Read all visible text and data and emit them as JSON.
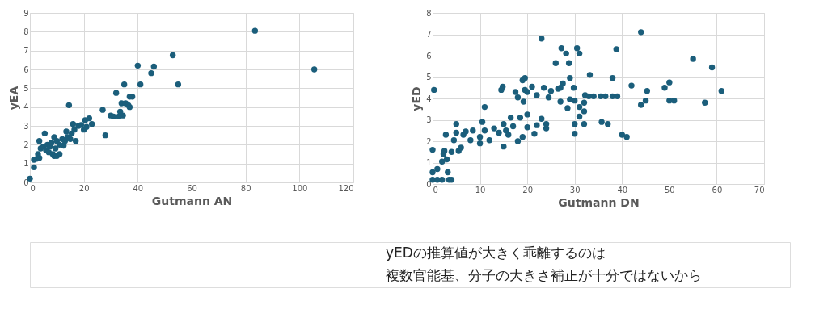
{
  "chart_data": [
    {
      "type": "scatter",
      "xlabel": "Gutmann AN",
      "ylabel": "yEA",
      "xlim": [
        0,
        120
      ],
      "xticks": [
        0,
        20,
        40,
        60,
        80,
        100,
        120
      ],
      "ylim": [
        0,
        9
      ],
      "yticks": [
        0,
        1,
        2,
        3,
        4,
        5,
        6,
        7,
        8,
        9
      ],
      "grid": true,
      "marker": "circle",
      "series": [
        {
          "color": "#1b5e7b",
          "x": [
            0,
            1.5,
            1.5,
            2.5,
            3.5,
            3,
            3.5,
            4,
            5,
            5.5,
            6,
            6.5,
            7,
            7.5,
            8,
            8.5,
            9,
            9,
            9.5,
            10,
            10,
            11,
            11,
            12,
            12.5,
            13,
            13.5,
            14,
            14.5,
            15,
            15.5,
            16,
            16.5,
            17,
            18,
            19,
            20,
            20.5,
            21,
            22,
            23,
            27,
            28,
            30,
            31,
            32,
            33,
            33.5,
            34,
            34.5,
            35,
            35.5,
            36.5,
            37,
            37,
            38,
            40,
            41,
            45,
            46,
            53,
            55,
            83.5,
            105.5
          ],
          "values": [
            0.2,
            0.8,
            1.2,
            1.25,
            1.3,
            1.5,
            2.2,
            1.8,
            1.9,
            2.6,
            1.7,
            2.0,
            1.6,
            1.9,
            2.1,
            1.5,
            1.4,
            2.4,
            1.8,
            2.2,
            1.4,
            1.5,
            2.0,
            2.3,
            1.95,
            2.2,
            2.7,
            2.4,
            4.1,
            2.3,
            2.6,
            3.1,
            2.8,
            2.2,
            3.0,
            3.05,
            2.8,
            3.3,
            2.95,
            3.4,
            3.1,
            3.85,
            2.5,
            3.55,
            3.5,
            4.75,
            3.5,
            3.75,
            4.2,
            3.55,
            5.2,
            4.2,
            4.1,
            4.55,
            4.0,
            4.55,
            6.2,
            5.2,
            5.8,
            6.15,
            6.75,
            5.2,
            8.05,
            6.0
          ]
        }
      ]
    },
    {
      "type": "scatter",
      "xlabel": "Gutmann DN",
      "ylabel": "yED",
      "xlim": [
        0,
        70
      ],
      "xticks": [
        0,
        10,
        20,
        30,
        40,
        50,
        60,
        70
      ],
      "ylim": [
        0,
        8
      ],
      "yticks": [
        0,
        1,
        2,
        3,
        4,
        5,
        6,
        7,
        8
      ],
      "grid": true,
      "marker": "circle",
      "annotations": [
        "yEDの推算値が大きく乖離するのは",
        "複数官能基、分子の大きさ補正が十分ではないから"
      ],
      "series": [
        {
          "color": "#1b5e7b",
          "x": [
            0,
            0,
            0,
            0.3,
            1,
            1,
            2,
            2,
            2.3,
            2.5,
            2.8,
            3,
            3.2,
            3.5,
            4,
            4,
            4.5,
            5,
            5,
            5.5,
            6,
            6.5,
            7,
            8,
            8.5,
            10,
            10,
            10.5,
            11,
            11,
            12,
            13,
            14,
            14.5,
            14.8,
            15,
            15,
            15.5,
            16,
            16.5,
            17,
            17.5,
            18,
            18,
            18.5,
            19,
            19,
            19.2,
            19.5,
            19.5,
            20,
            20,
            20,
            21,
            21.5,
            22,
            22,
            23,
            23,
            23.5,
            24,
            24,
            24.5,
            25,
            26,
            26.5,
            27,
            27,
            27.2,
            27.5,
            28.2,
            28.5,
            28.8,
            29,
            29,
            29.8,
            30,
            30,
            30,
            30.5,
            31,
            31,
            31,
            32,
            32,
            32,
            32.2,
            33,
            33.2,
            34,
            35.5,
            35.7,
            36.5,
            37,
            38,
            38,
            38.8,
            39,
            40,
            41,
            42,
            44,
            44,
            45,
            45.3,
            49,
            50,
            50,
            51,
            55,
            57.5,
            59,
            61
          ],
          "values": [
            0.2,
            0.55,
            1.6,
            4.4,
            0.7,
            0.2,
            0.2,
            1.05,
            1.4,
            1.55,
            2.3,
            1.15,
            0.55,
            0.2,
            1.5,
            0.2,
            2.05,
            2.8,
            2.4,
            1.55,
            1.7,
            2.3,
            2.45,
            2.05,
            2.5,
            1.9,
            2.2,
            2.9,
            3.6,
            2.5,
            2.05,
            2.6,
            2.4,
            4.4,
            4.55,
            1.75,
            2.8,
            2.5,
            2.3,
            3.1,
            2.7,
            4.3,
            4.05,
            2.0,
            3.1,
            4.85,
            2.2,
            3.85,
            4.95,
            4.4,
            4.3,
            3.25,
            2.65,
            4.55,
            2.35,
            4.15,
            2.75,
            6.8,
            3.05,
            4.5,
            2.8,
            2.6,
            4.05,
            4.35,
            5.65,
            4.45,
            4.5,
            3.85,
            6.35,
            4.7,
            6.1,
            3.55,
            5.65,
            4.95,
            3.95,
            4.5,
            2.35,
            2.8,
            3.9,
            6.35,
            3.15,
            6.1,
            3.6,
            3.8,
            3.4,
            2.8,
            4.15,
            4.1,
            5.1,
            4.1,
            4.1,
            2.9,
            4.1,
            2.8,
            4.95,
            4.1,
            6.3,
            4.1,
            2.3,
            2.2,
            4.6,
            3.7,
            7.1,
            3.9,
            4.35,
            4.5,
            4.75,
            3.9,
            3.9,
            5.85,
            3.8,
            5.45,
            4.35
          ]
        }
      ]
    }
  ]
}
